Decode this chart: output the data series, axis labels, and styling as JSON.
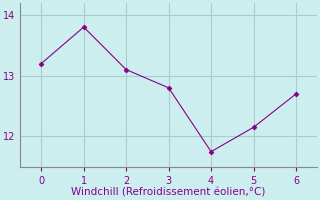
{
  "x": [
    0,
    1,
    2,
    3,
    4,
    5,
    6
  ],
  "y": [
    13.2,
    13.8,
    13.1,
    12.8,
    11.75,
    12.15,
    12.7
  ],
  "line_color": "#880088",
  "marker": "D",
  "marker_size": 2.5,
  "background_color": "#cceeee",
  "grid_color": "#aacccc",
  "xlabel": "Windchill (Refroidissement éolien,°C)",
  "xlabel_color": "#880088",
  "xlabel_fontsize": 7.5,
  "tick_color": "#880088",
  "tick_labelsize": 7,
  "spine_color": "#888888",
  "ylim": [
    11.5,
    14.2
  ],
  "xlim": [
    -0.5,
    6.5
  ],
  "yticks": [
    12,
    13,
    14
  ],
  "xticks": [
    0,
    1,
    2,
    3,
    4,
    5,
    6
  ]
}
